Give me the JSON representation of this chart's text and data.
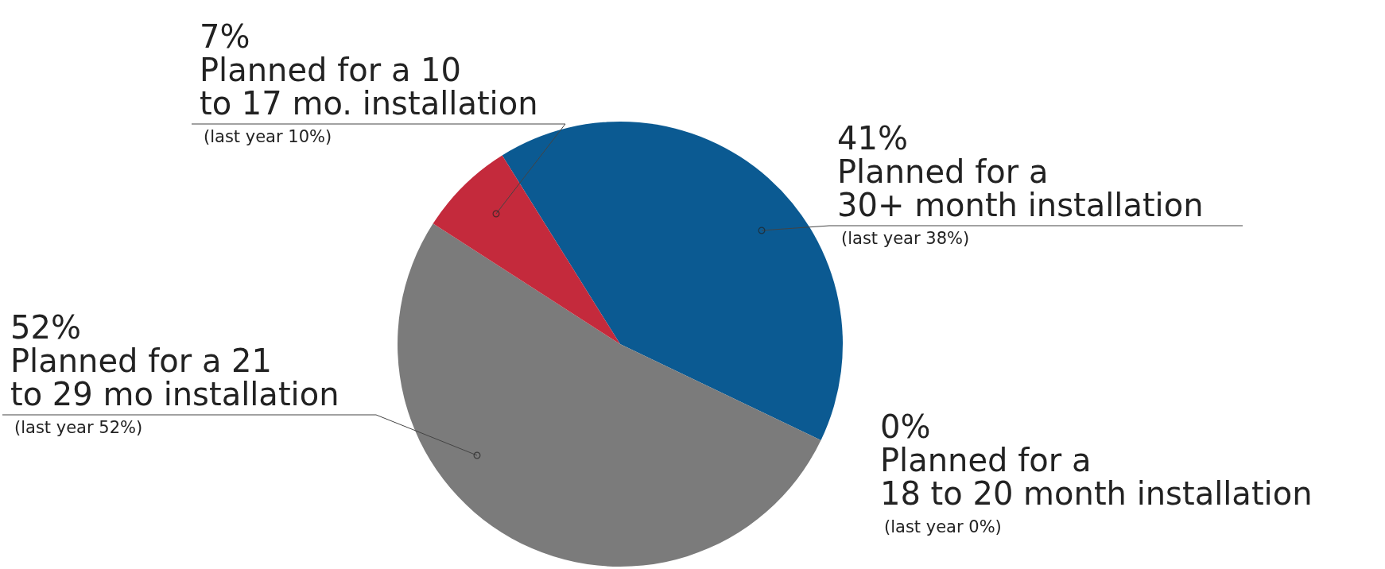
{
  "chart_data": {
    "type": "pie",
    "categories": [
      "Planned for a 30+ month installation",
      "Planned for a 18 to 20 month installation",
      "Planned for a 21 to 29 mo installation",
      "Planned for a 10 to 17 mo. installation"
    ],
    "values": [
      41,
      0,
      52,
      7
    ],
    "value_labels": [
      "41%",
      "0%",
      "52%",
      "7%"
    ],
    "colors": [
      "#0b5a92",
      "#2e2e2e",
      "#7b7b7b",
      "#c42a3c"
    ],
    "annotations": [
      "(last year 38%)",
      "(last year 0%)",
      "(last year 52%)",
      "(last year 10%)"
    ]
  }
}
